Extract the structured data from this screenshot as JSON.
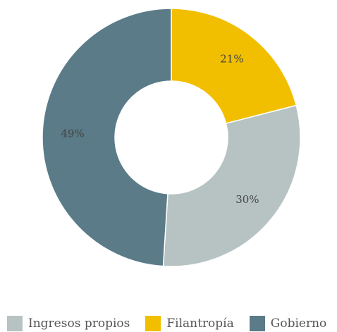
{
  "chart_data": {
    "type": "donut",
    "categories": [
      "Filantropía",
      "Ingresos propios",
      "Gobierno"
    ],
    "values": [
      21,
      30,
      49
    ],
    "value_labels": [
      "21%",
      "30%",
      "49%"
    ],
    "colors": [
      "#f2bf00",
      "#b7c3c3",
      "#5a7b87"
    ],
    "legend": "bottom"
  }
}
